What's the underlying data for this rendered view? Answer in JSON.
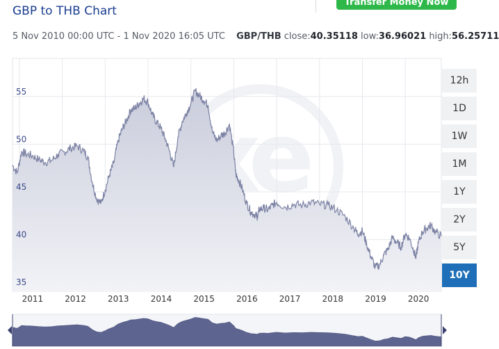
{
  "header": {
    "title": "GBP to THB Chart",
    "transfer_button": "Transfer Money Now"
  },
  "meta": {
    "range": "5 Nov 2010 00:00 UTC - 1 Nov 2020 16:05 UTC",
    "pair": "GBP/THB",
    "close_label": "close:",
    "close": "40.35118",
    "low_label": "low:",
    "low": "36.96021",
    "high_label": "high:",
    "high": "56.25711"
  },
  "range_buttons": [
    {
      "label": "12h",
      "active": false
    },
    {
      "label": "1D",
      "active": false
    },
    {
      "label": "1W",
      "active": false
    },
    {
      "label": "1M",
      "active": false
    },
    {
      "label": "1Y",
      "active": false
    },
    {
      "label": "2Y",
      "active": false
    },
    {
      "label": "5Y",
      "active": false
    },
    {
      "label": "10Y",
      "active": true
    }
  ],
  "colors": {
    "line": "#7c82a4",
    "fill_top": "#c9ccdb",
    "fill_bottom": "#f2f3f7",
    "navigator_fill": "#5d6490",
    "active_button": "#1f6fb8"
  },
  "chart_data": {
    "type": "area",
    "title": "GBP to THB Chart",
    "ylim": [
      34.5,
      59
    ],
    "yticks": [
      35,
      40,
      45,
      50,
      55
    ],
    "ytick_labels": [
      "35",
      "40",
      "45",
      "50",
      "55"
    ],
    "xlim": [
      2010.84,
      2020.84
    ],
    "xticks": [
      2011,
      2012,
      2013,
      2014,
      2015,
      2016,
      2017,
      2018,
      2019,
      2020
    ],
    "xtick_labels": [
      "2011",
      "2012",
      "2013",
      "2014",
      "2015",
      "2016",
      "2017",
      "2018",
      "2019",
      "2020"
    ],
    "grid": true,
    "series": [
      {
        "x": [
          2010.84,
          2010.95,
          2011.05,
          2011.15,
          2011.3,
          2011.45,
          2011.6,
          2011.75,
          2011.9,
          2012.05,
          2012.2,
          2012.35,
          2012.5,
          2012.6,
          2012.7,
          2012.8,
          2012.9,
          2013.0,
          2013.1,
          2013.2,
          2013.3,
          2013.4,
          2013.5,
          2013.6,
          2013.7,
          2013.8,
          2013.9,
          2014.0,
          2014.1,
          2014.2,
          2014.3,
          2014.4,
          2014.5,
          2014.6,
          2014.7,
          2014.8,
          2014.9,
          2015.0,
          2015.1,
          2015.2,
          2015.3,
          2015.4,
          2015.5,
          2015.6,
          2015.7,
          2015.8,
          2015.9,
          2016.0,
          2016.05,
          2016.1,
          2016.2,
          2016.3,
          2016.4,
          2016.5,
          2016.55,
          2016.6,
          2016.7,
          2016.8,
          2016.9,
          2017.0,
          2017.2,
          2017.4,
          2017.6,
          2017.8,
          2018.0,
          2018.2,
          2018.4,
          2018.6,
          2018.8,
          2018.9,
          2019.0,
          2019.1,
          2019.2,
          2019.3,
          2019.4,
          2019.5,
          2019.6,
          2019.7,
          2019.8,
          2019.9,
          2020.0,
          2020.1,
          2020.2,
          2020.25,
          2020.3,
          2020.4,
          2020.5,
          2020.6,
          2020.7,
          2020.84
        ],
        "y": [
          47.8,
          47.0,
          49.2,
          49.0,
          48.8,
          48.4,
          48.1,
          48.3,
          48.9,
          49.2,
          49.6,
          49.8,
          49.3,
          48.6,
          46.0,
          44.3,
          43.8,
          45.2,
          46.8,
          48.0,
          50.3,
          51.6,
          52.5,
          53.6,
          53.8,
          54.3,
          54.8,
          54.4,
          53.1,
          52.3,
          51.7,
          50.6,
          49.3,
          47.6,
          50.8,
          52.4,
          53.3,
          54.3,
          55.6,
          55.1,
          54.6,
          54.1,
          51.3,
          50.4,
          50.9,
          51.2,
          52.1,
          49.1,
          46.8,
          46.4,
          45.3,
          43.8,
          42.9,
          42.6,
          42.4,
          43.2,
          43.3,
          43.1,
          43.6,
          43.9,
          43.4,
          43.7,
          43.6,
          43.9,
          43.7,
          43.6,
          43.1,
          42.4,
          41.2,
          40.6,
          40.9,
          39.5,
          38.2,
          37.1,
          37.3,
          38.4,
          39.0,
          40.2,
          39.7,
          39.2,
          40.6,
          40.1,
          38.8,
          38.1,
          39.6,
          40.8,
          41.2,
          41.5,
          40.8,
          40.35
        ]
      }
    ]
  }
}
